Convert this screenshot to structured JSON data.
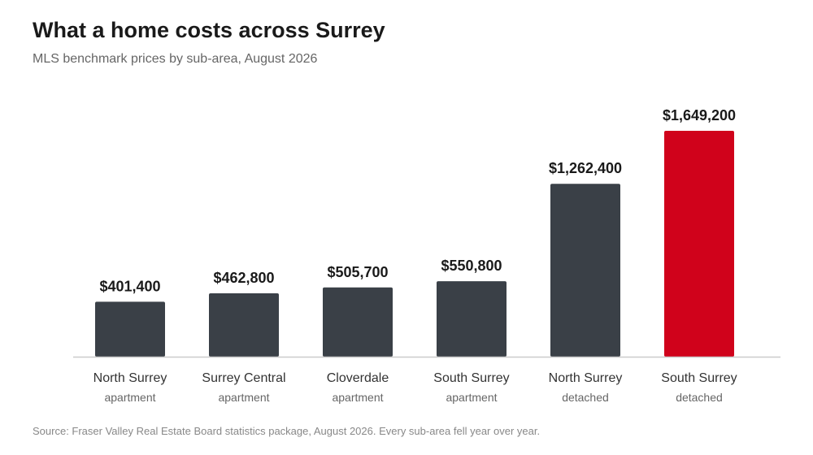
{
  "header": {
    "title": "What a home costs across Surrey",
    "subtitle": "MLS benchmark prices by sub-area, August 2026"
  },
  "footer": {
    "source": "Source: Fraser Valley Real Estate Board statistics package, August 2026. Every sub-area fell year over year."
  },
  "colors": {
    "bar": "#3a4047",
    "highlight": "#d0021b",
    "baseline": "#cccccc"
  },
  "chart_data": {
    "type": "bar",
    "title": "What a home costs across Surrey",
    "subtitle": "MLS benchmark prices by sub-area, August 2026",
    "xlabel": "",
    "ylabel": "",
    "ylim": [
      0,
      1649200
    ],
    "grid": false,
    "categories": [
      {
        "name": "North Surrey",
        "type": "apartment"
      },
      {
        "name": "Surrey Central",
        "type": "apartment"
      },
      {
        "name": "Cloverdale",
        "type": "apartment"
      },
      {
        "name": "South Surrey",
        "type": "apartment"
      },
      {
        "name": "North Surrey",
        "type": "detached"
      },
      {
        "name": "South Surrey",
        "type": "detached"
      }
    ],
    "values": [
      401400,
      462800,
      505700,
      550800,
      1262400,
      1649200
    ],
    "value_labels": [
      "$401,400",
      "$462,800",
      "$505,700",
      "$550,800",
      "$1,262,400",
      "$1,649,200"
    ],
    "highlight_index": 5
  }
}
